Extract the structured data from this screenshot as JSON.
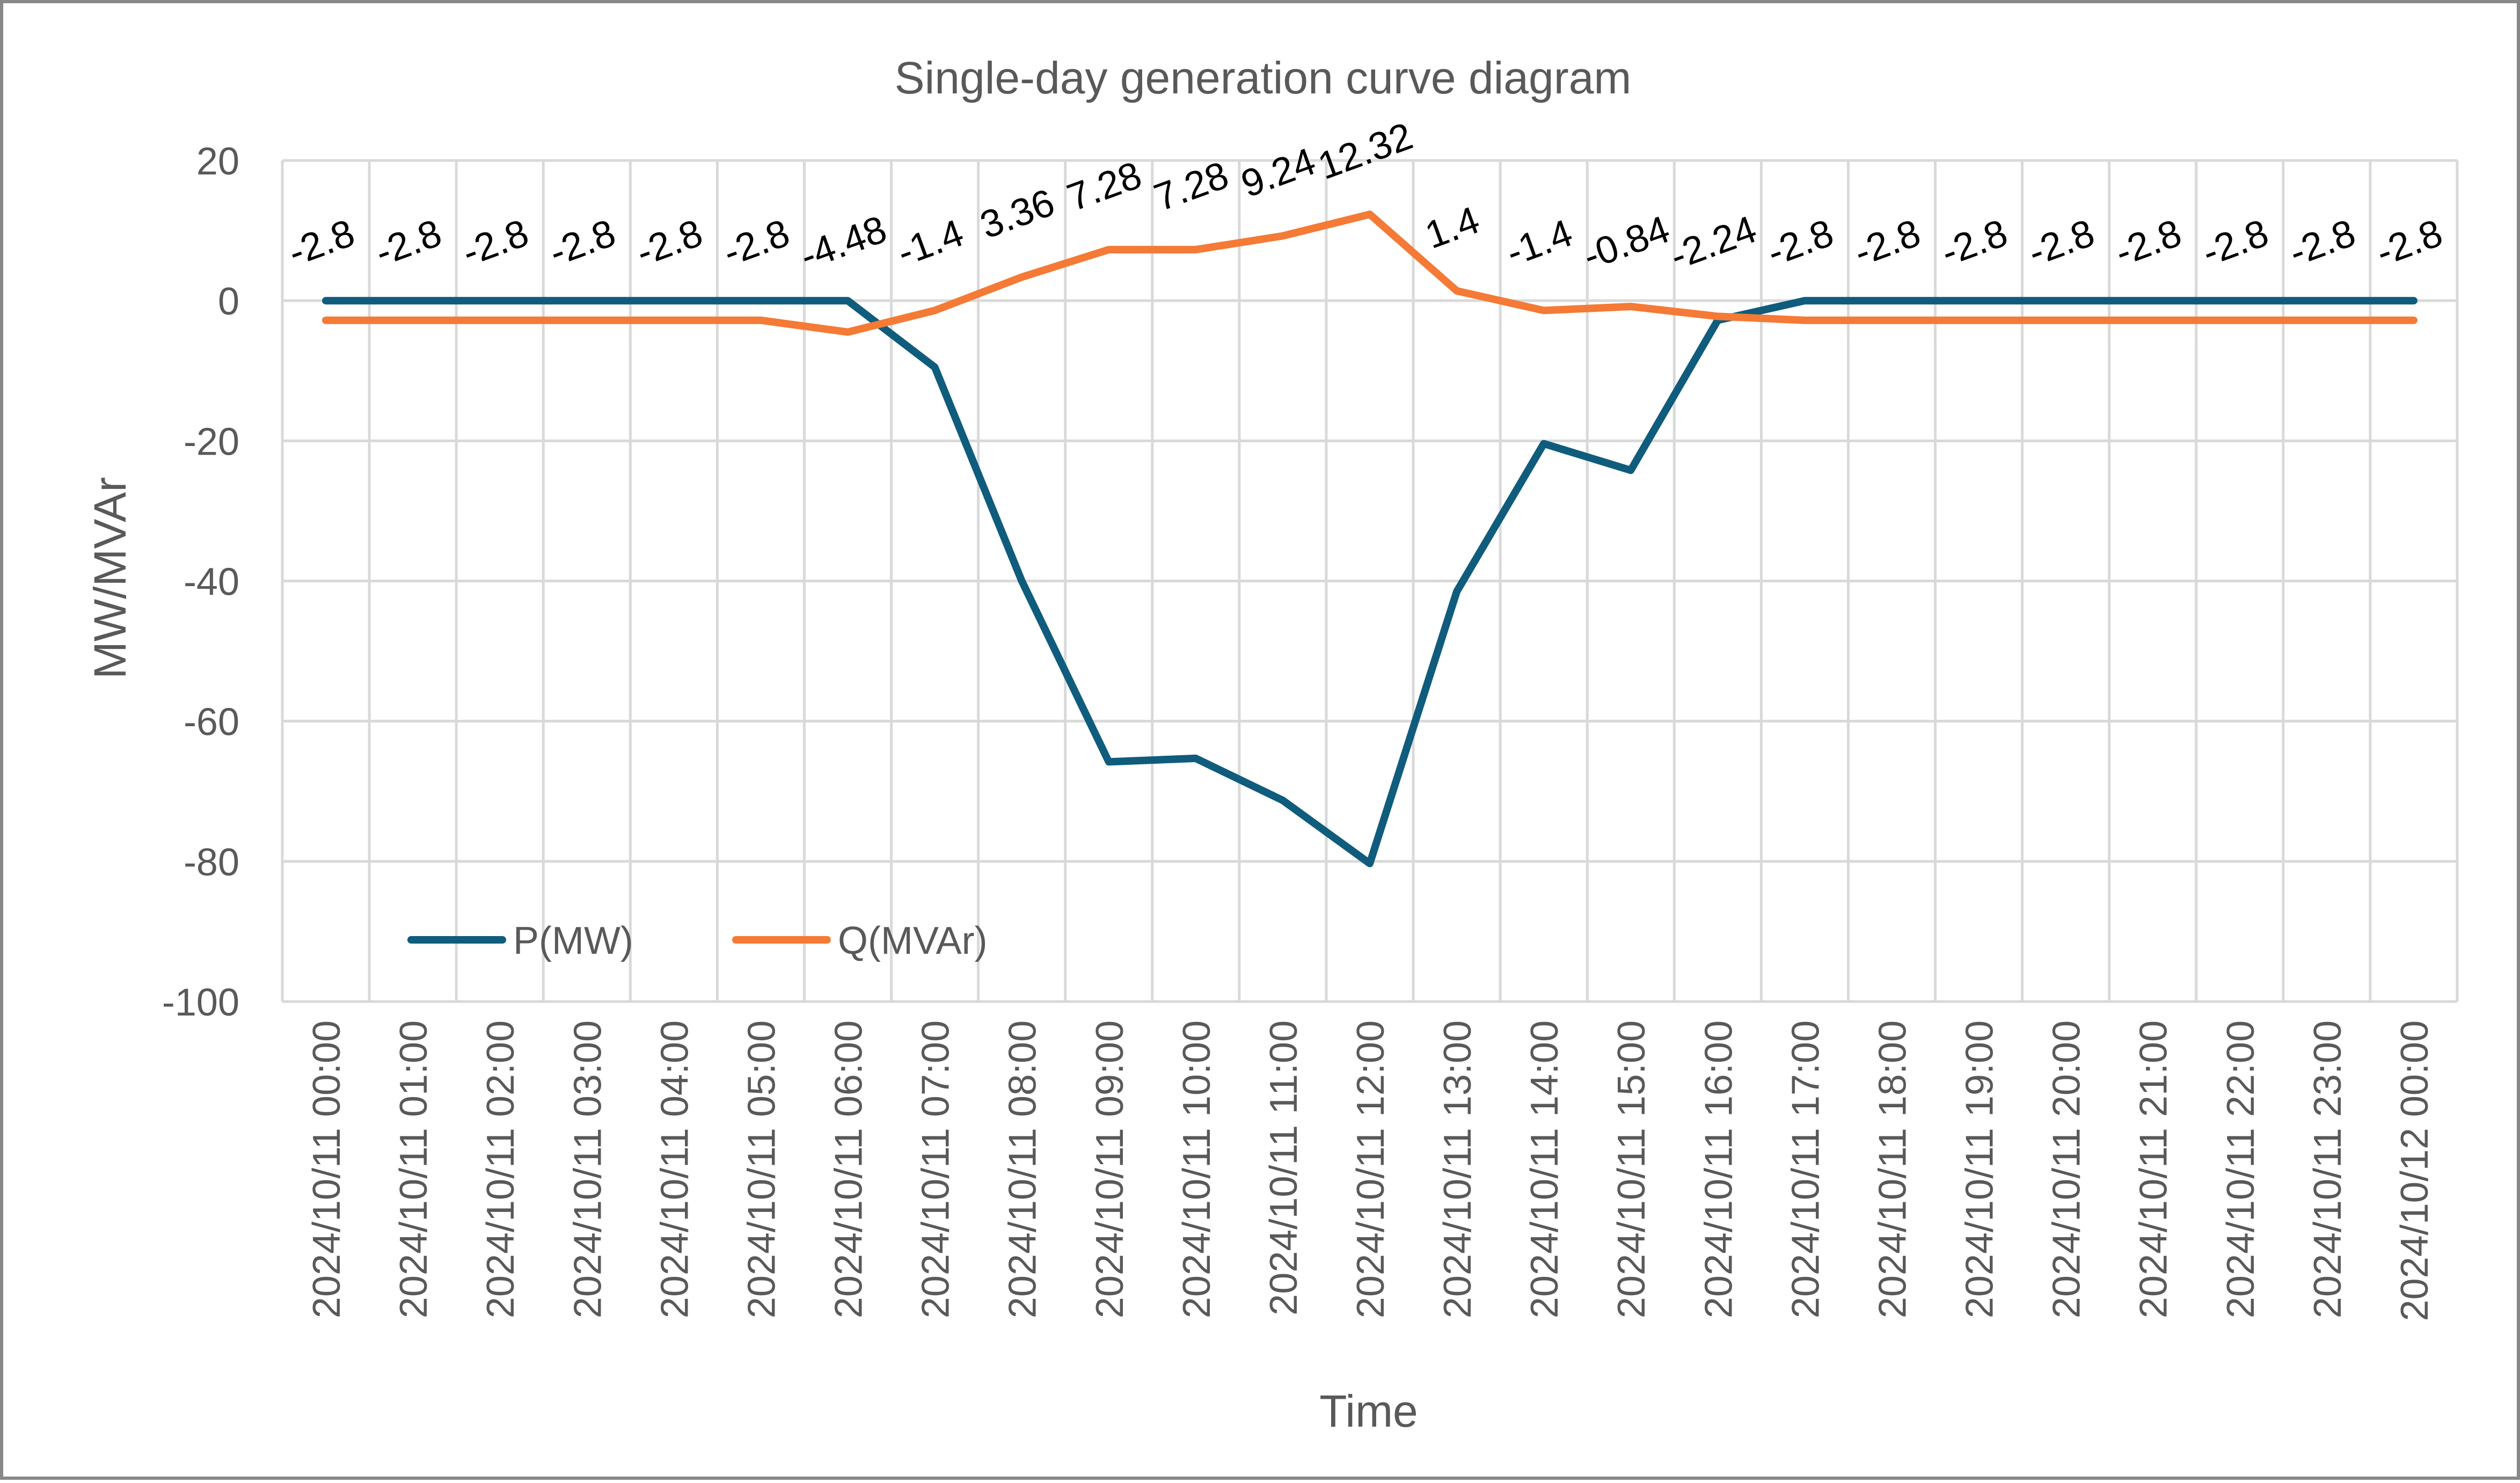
{
  "chart_data": {
    "type": "line",
    "title": "Single-day generation curve diagram",
    "xlabel": "Time",
    "ylabel": "MW/MVAr",
    "ylim": [
      -100,
      20
    ],
    "yticks": [
      20,
      0,
      -20,
      -40,
      -60,
      -80,
      -100
    ],
    "grid": true,
    "legend_position": "bottom-left",
    "categories": [
      "2024/10/11 00:00",
      "2024/10/11 01:00",
      "2024/10/11 02:00",
      "2024/10/11 03:00",
      "2024/10/11 04:00",
      "2024/10/11 05:00",
      "2024/10/11 06:00",
      "2024/10/11 07:00",
      "2024/10/11 08:00",
      "2024/10/11 09:00",
      "2024/10/11 10:00",
      "2024/10/11 11:00",
      "2024/10/11 12:00",
      "2024/10/11 13:00",
      "2024/10/11 14:00",
      "2024/10/11 15:00",
      "2024/10/11 16:00",
      "2024/10/11 17:00",
      "2024/10/11 18:00",
      "2024/10/11 19:00",
      "2024/10/11 20:00",
      "2024/10/11 21:00",
      "2024/10/11 22:00",
      "2024/10/11 23:00",
      "2024/10/12 00:00"
    ],
    "series": [
      {
        "name": "P(MW)",
        "color": "#0f5c7d",
        "values": [
          0,
          0,
          0,
          0,
          0,
          0,
          0,
          -9.5,
          -40,
          -65.8,
          -65.3,
          -71.3,
          -80.3,
          -41.5,
          -20.4,
          -24.2,
          -2.8,
          0,
          0,
          0,
          0,
          0,
          0,
          0,
          0
        ]
      },
      {
        "name": "Q(MVAr)",
        "color": "#f47a36",
        "values": [
          -2.8,
          -2.8,
          -2.8,
          -2.8,
          -2.8,
          -2.8,
          -4.48,
          -1.4,
          3.36,
          7.28,
          7.28,
          9.24,
          12.32,
          1.4,
          -1.4,
          -0.84,
          -2.24,
          -2.8,
          -2.8,
          -2.8,
          -2.8,
          -2.8,
          -2.8,
          -2.8,
          -2.8
        ],
        "data_labels": [
          "-2.8",
          "-2.8",
          "-2.8",
          "-2.8",
          "-2.8",
          "-2.8",
          "-4.48",
          "-1.4",
          "3.36",
          "7.28",
          "7.28",
          "9.24",
          "12.32",
          "1.4",
          "-1.4",
          "-0.84",
          "-2.24",
          "-2.8",
          "-2.8",
          "-2.8",
          "-2.8",
          "-2.8",
          "-2.8",
          "-2.8",
          "-2.8"
        ]
      }
    ]
  }
}
